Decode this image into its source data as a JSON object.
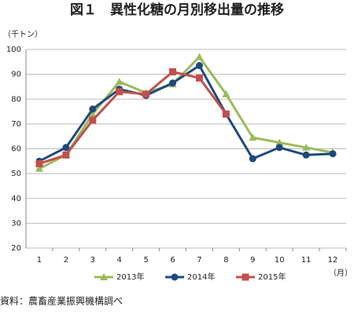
{
  "chart_data": {
    "type": "line",
    "title": "図１　異性化糖の月別移出量の推移",
    "y_label": "（千トン）",
    "x_label": "（月）",
    "source": "資料：農畜産業振興機構調べ",
    "categories": [
      "1",
      "2",
      "3",
      "4",
      "5",
      "6",
      "7",
      "8",
      "9",
      "10",
      "11",
      "12"
    ],
    "series": [
      {
        "name": "2013年",
        "color": "#9bbb59",
        "marker": "triangle",
        "values": [
          52,
          57.5,
          74,
          87,
          82.5,
          86,
          97,
          82,
          64.5,
          62.5,
          60.5,
          58.5
        ]
      },
      {
        "name": "2014年",
        "color": "#1f497d",
        "marker": "circle",
        "values": [
          55,
          60.5,
          76,
          84,
          81.5,
          86.5,
          93.5,
          74,
          56,
          60.5,
          57.5,
          58
        ]
      },
      {
        "name": "2015年",
        "color": "#c0504d",
        "marker": "square",
        "values": [
          54,
          57.5,
          71.5,
          83,
          82,
          91,
          88.5,
          74,
          null,
          null,
          null,
          null
        ]
      }
    ],
    "ylim": [
      20,
      100
    ],
    "yticks": [
      20,
      30,
      40,
      50,
      60,
      70,
      80,
      90,
      100
    ],
    "grid": true,
    "legend": "bottom"
  }
}
